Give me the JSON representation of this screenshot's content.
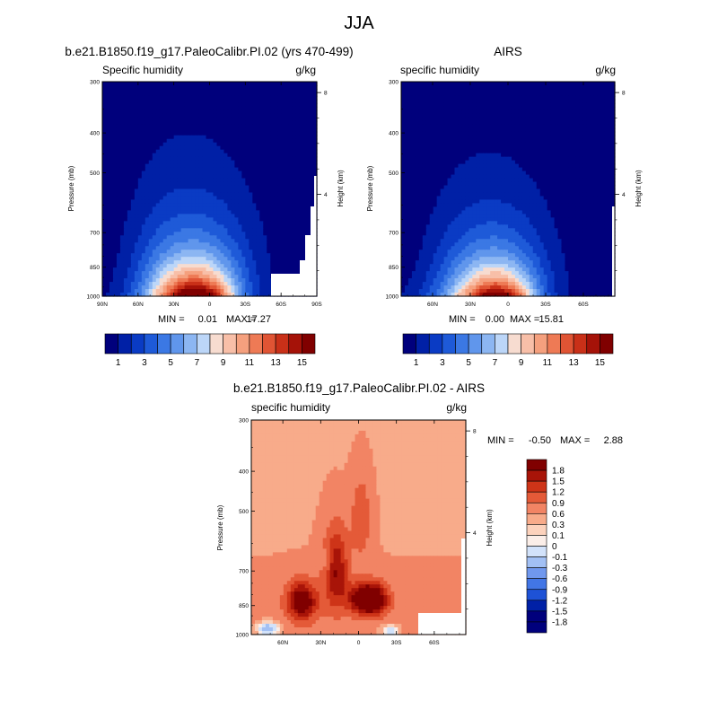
{
  "page_title": "JJA",
  "colors": {
    "seq": [
      "#00007c",
      "#0020a6",
      "#0a3bc4",
      "#1e5ad8",
      "#3b78e4",
      "#6096ec",
      "#8cb6f2",
      "#bcd6f8",
      "#f7dcd0",
      "#f8bfa8",
      "#f5a07e",
      "#ee7a55",
      "#e05434",
      "#c93018",
      "#a51208",
      "#800000"
    ],
    "div": [
      "#00007c",
      "#0020a6",
      "#1e52d6",
      "#4276e6",
      "#7098ee",
      "#a2c0f4",
      "#d2e2fa",
      "#fbeee8",
      "#fcd2bc",
      "#f8ab8a",
      "#f28464",
      "#e45a38",
      "#ce3418",
      "#a81408",
      "#800000"
    ]
  },
  "chart_data": [
    {
      "id": "model",
      "type": "heatmap",
      "title": "b.e21.B1850.f19_g17.PaleoCalibr.PI.02 (yrs 470-499)",
      "left_label": "Specific humidity",
      "units": "g/kg",
      "ylabel": "Pressure (mb)",
      "y2label": "Height (km)",
      "x_ticks": [
        "90N",
        "60N",
        "30N",
        "0",
        "30S",
        "60S",
        "90S"
      ],
      "x_tick_values": [
        -90,
        -60,
        -30,
        0,
        30,
        60,
        90
      ],
      "xlim": [
        -90,
        90
      ],
      "y_ticks": [
        "300",
        "400",
        "500",
        "700",
        "850",
        "1000"
      ],
      "y_tick_values": [
        300,
        400,
        500,
        700,
        850,
        1000
      ],
      "ylim": [
        300,
        1000
      ],
      "y2_ticks": [
        "8",
        "4"
      ],
      "y2_tick_values": [
        8,
        4
      ],
      "stats": {
        "min_label": "MIN =",
        "min": "0.01",
        "max_label": "MAX =",
        "max": "17.27"
      },
      "levels": [
        1,
        2,
        3,
        4,
        5,
        6,
        7,
        8,
        9,
        10,
        11,
        12,
        13,
        14,
        15
      ],
      "colorbar_labels": [
        "1",
        "3",
        "5",
        "7",
        "9",
        "11",
        "13",
        "15"
      ],
      "field": {
        "peak_lat": -10,
        "peak_value": 17.3,
        "lat_width": 33,
        "scale_height_mb": 205,
        "ridge_lat": -12
      }
    },
    {
      "id": "obs",
      "type": "heatmap",
      "title": "AIRS",
      "left_label": "specific humidity",
      "units": "g/kg",
      "ylabel": "Pressure (mb)",
      "y2label": "Height (km)",
      "x_ticks": [
        "60N",
        "30N",
        "0",
        "30S",
        "60S"
      ],
      "x_tick_values": [
        -60,
        -30,
        0,
        30,
        60
      ],
      "xlim": [
        -85,
        85
      ],
      "y_ticks": [
        "300",
        "400",
        "500",
        "700",
        "850",
        "1000"
      ],
      "y_tick_values": [
        300,
        400,
        500,
        700,
        850,
        1000
      ],
      "ylim": [
        300,
        1000
      ],
      "y2_ticks": [
        "8",
        "4"
      ],
      "y2_tick_values": [
        8,
        4
      ],
      "stats": {
        "min_label": "MIN =",
        "min": "0.00",
        "max_label": "MAX =",
        "max": "15.81"
      },
      "levels": [
        1,
        2,
        3,
        4,
        5,
        6,
        7,
        8,
        9,
        10,
        11,
        12,
        13,
        14,
        15
      ],
      "colorbar_labels": [
        "1",
        "3",
        "5",
        "7",
        "9",
        "11",
        "13",
        "15"
      ],
      "field": {
        "peak_lat": -8,
        "peak_value": 15.8,
        "lat_width": 30,
        "scale_height_mb": 195,
        "ridge_lat": -10
      }
    },
    {
      "id": "diff",
      "type": "heatmap",
      "title": "b.e21.B1850.f19_g17.PaleoCalibr.PI.02 - AIRS",
      "left_label": "specific humidity",
      "units": "g/kg",
      "ylabel": "Pressure (mb)",
      "y2label": "Height (km)",
      "x_ticks": [
        "60N",
        "30N",
        "0",
        "30S",
        "60S"
      ],
      "x_tick_values": [
        -60,
        -30,
        0,
        30,
        60
      ],
      "xlim": [
        -85,
        85
      ],
      "y_ticks": [
        "300",
        "400",
        "500",
        "700",
        "850",
        "1000"
      ],
      "y_tick_values": [
        300,
        400,
        500,
        700,
        850,
        1000
      ],
      "ylim": [
        300,
        1000
      ],
      "y2_ticks": [
        "8",
        "4"
      ],
      "y2_tick_values": [
        8,
        4
      ],
      "stats": {
        "min_label": "MIN =",
        "min": "-0.50",
        "max_label": "MAX =",
        "max": "2.88"
      },
      "levels": [
        -1.8,
        -1.5,
        -1.2,
        -0.9,
        -0.6,
        -0.3,
        -0.1,
        0,
        0.1,
        0.3,
        0.6,
        0.9,
        1.2,
        1.5,
        1.8
      ],
      "colorbar_labels": [
        "1.8",
        "1.5",
        "1.2",
        "0.9",
        "0.6",
        "0.3",
        "0.1",
        "0",
        "-0.1",
        "-0.3",
        "-0.6",
        "-0.9",
        "-1.2",
        "-1.5",
        "-1.8"
      ]
    }
  ]
}
